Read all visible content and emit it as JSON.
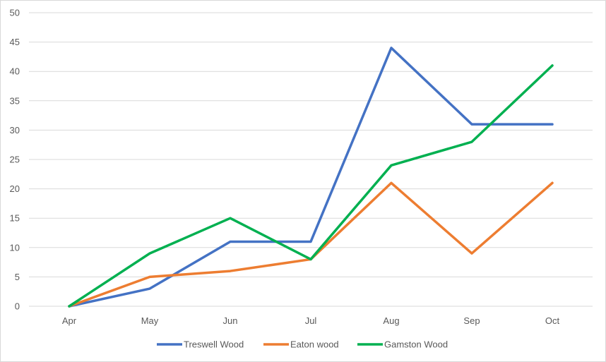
{
  "chart_data": {
    "type": "line",
    "title": "",
    "xlabel": "",
    "ylabel": "",
    "categories": [
      "Apr",
      "May",
      "Jun",
      "Jul",
      "Aug",
      "Sep",
      "Oct"
    ],
    "ylim": [
      0,
      50
    ],
    "yticks": [
      0,
      5,
      10,
      15,
      20,
      25,
      30,
      35,
      40,
      45,
      50
    ],
    "grid": "horizontal",
    "legend_position": "bottom",
    "series": [
      {
        "name": "Treswell Wood",
        "color": "#4472c4",
        "values": [
          0,
          3,
          11,
          11,
          44,
          31,
          31
        ]
      },
      {
        "name": "Eaton wood",
        "color": "#ed7d31",
        "values": [
          0,
          5,
          6,
          8,
          21,
          9,
          21
        ]
      },
      {
        "name": "Gamston Wood",
        "color": "#00b050",
        "values": [
          0,
          9,
          15,
          8,
          24,
          28,
          41
        ]
      }
    ]
  }
}
